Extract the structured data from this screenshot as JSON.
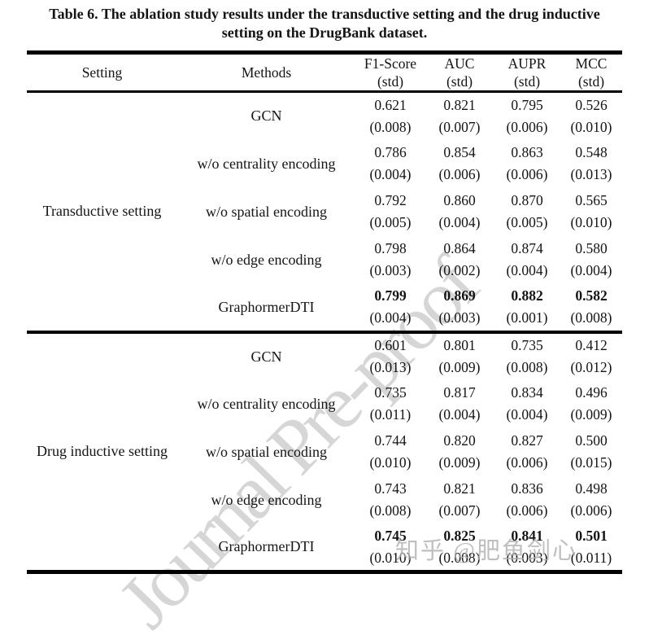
{
  "caption": {
    "line1": "Table 6. The ablation study results under the transductive setting and the drug inductive",
    "line2": "setting on the DrugBank dataset."
  },
  "table": {
    "headers": [
      {
        "label": "Setting",
        "sub": ""
      },
      {
        "label": "Methods",
        "sub": ""
      },
      {
        "label": "F1-Score",
        "sub": "(std)"
      },
      {
        "label": "AUC",
        "sub": "(std)"
      },
      {
        "label": "AUPR",
        "sub": "(std)"
      },
      {
        "label": "MCC",
        "sub": "(std)"
      }
    ],
    "blocks": [
      {
        "setting": "Transductive setting",
        "rows": [
          {
            "method": "GCN",
            "bold": false,
            "values": [
              "0.621",
              "0.821",
              "0.795",
              "0.526"
            ],
            "stds": [
              "(0.008)",
              "(0.007)",
              "(0.006)",
              "(0.010)"
            ]
          },
          {
            "method": "w/o centrality encoding",
            "bold": false,
            "values": [
              "0.786",
              "0.854",
              "0.863",
              "0.548"
            ],
            "stds": [
              "(0.004)",
              "(0.006)",
              "(0.006)",
              "(0.013)"
            ]
          },
          {
            "method": "w/o spatial encoding",
            "bold": false,
            "values": [
              "0.792",
              "0.860",
              "0.870",
              "0.565"
            ],
            "stds": [
              "(0.005)",
              "(0.004)",
              "(0.005)",
              "(0.010)"
            ]
          },
          {
            "method": "w/o edge encoding",
            "bold": false,
            "values": [
              "0.798",
              "0.864",
              "0.874",
              "0.580"
            ],
            "stds": [
              "(0.003)",
              "(0.002)",
              "(0.004)",
              "(0.004)"
            ]
          },
          {
            "method": "GraphormerDTI",
            "bold": true,
            "values": [
              "0.799",
              "0.869",
              "0.882",
              "0.582"
            ],
            "stds": [
              "(0.004)",
              "(0.003)",
              "(0.001)",
              "(0.008)"
            ]
          }
        ]
      },
      {
        "setting": "Drug inductive setting",
        "rows": [
          {
            "method": "GCN",
            "bold": false,
            "values": [
              "0.601",
              "0.801",
              "0.735",
              "0.412"
            ],
            "stds": [
              "(0.013)",
              "(0.009)",
              "(0.008)",
              "(0.012)"
            ]
          },
          {
            "method": "w/o centrality encoding",
            "bold": false,
            "values": [
              "0.735",
              "0.817",
              "0.834",
              "0.496"
            ],
            "stds": [
              "(0.011)",
              "(0.004)",
              "(0.004)",
              "(0.009)"
            ]
          },
          {
            "method": "w/o spatial encoding",
            "bold": false,
            "values": [
              "0.744",
              "0.820",
              "0.827",
              "0.500"
            ],
            "stds": [
              "(0.010)",
              "(0.009)",
              "(0.006)",
              "(0.015)"
            ]
          },
          {
            "method": "w/o edge encoding",
            "bold": false,
            "values": [
              "0.743",
              "0.821",
              "0.836",
              "0.498"
            ],
            "stds": [
              "(0.008)",
              "(0.007)",
              "(0.006)",
              "(0.006)"
            ]
          },
          {
            "method": "GraphormerDTI",
            "bold": true,
            "values": [
              "0.745",
              "0.825",
              "0.841",
              "0.501"
            ],
            "stds": [
              "(0.010)",
              "(0.008)",
              "(0.003)",
              "(0.011)"
            ]
          }
        ]
      }
    ]
  },
  "watermarks": {
    "diagonal": "Journal Pre-proof",
    "corner": "知乎 @肥鱼剑心"
  }
}
